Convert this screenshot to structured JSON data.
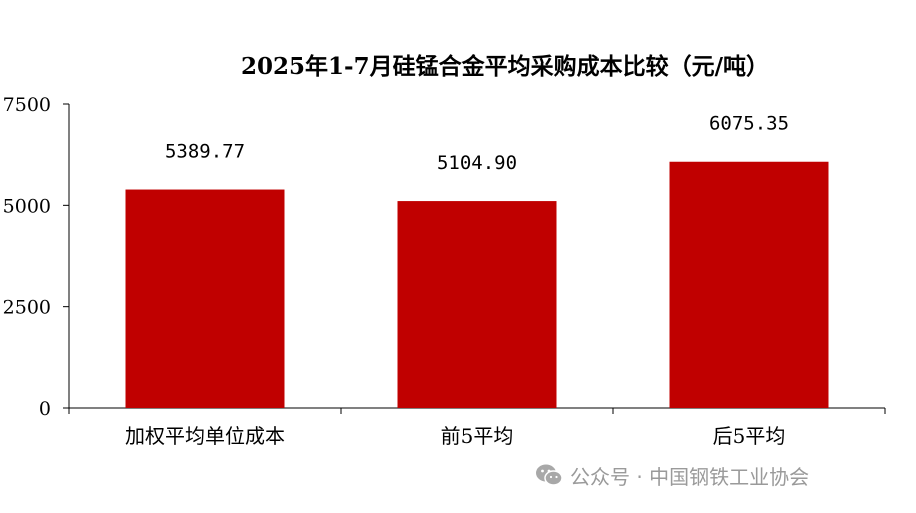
{
  "chart_data": {
    "type": "bar",
    "title": "2025年1-7月硅锰合金平均采购成本比较（元/吨）",
    "categories": [
      "加权平均单位成本",
      "前5平均",
      "后5平均"
    ],
    "values": [
      5389.77,
      5104.9,
      6075.35
    ],
    "data_labels": [
      "5389.77",
      "5104.90",
      "6075.35"
    ],
    "ylim": [
      0,
      7500
    ],
    "yticks": [
      "0",
      "2500",
      "5000",
      "7500"
    ],
    "xlabel": "",
    "ylabel": "",
    "grid": false,
    "legend": "none",
    "bar_color": "#c00000"
  },
  "watermark": {
    "text": "公众号 · 中国钢铁工业协会",
    "icon": "wechat-icon"
  }
}
